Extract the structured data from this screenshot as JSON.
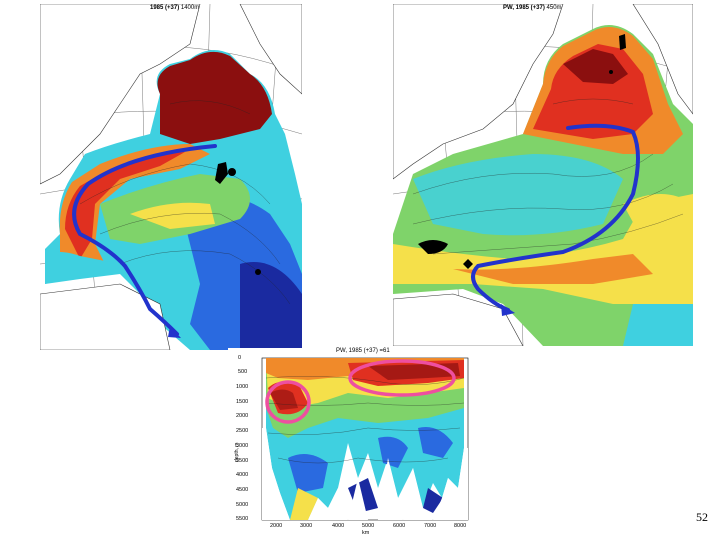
{
  "panels": {
    "map_deep": {
      "title_bold": "1985 (+37)",
      "title_rest": " 1400m"
    },
    "map_shallow": {
      "title_bold": "PW, 1985 (+37)",
      "title_rest": " 450m"
    },
    "section": {
      "title": "PW, 1985 (+37) =61",
      "ylabel": "depth, m",
      "xlabel": "km",
      "y_ticks": [
        "0",
        "500",
        "1000",
        "1500",
        "2000",
        "2500",
        "3000",
        "3500",
        "4000",
        "4500",
        "5000",
        "5500"
      ],
      "x_ticks": [
        "2000",
        "3000",
        "4000",
        "5000",
        "6000",
        "7000",
        "8000"
      ]
    }
  },
  "page_number": "52",
  "colors": {
    "arrow": "#2233cc",
    "highlight": "#ee4fa0",
    "warm_dark": "#8b0f0f",
    "warm": "#e03020",
    "orange": "#f08a2a",
    "yellow": "#f5e04a",
    "green": "#7fd36a",
    "cyan": "#3fd0e0",
    "blue": "#2a6ae0",
    "navy": "#1a2aa0",
    "land": "#ffffff"
  }
}
